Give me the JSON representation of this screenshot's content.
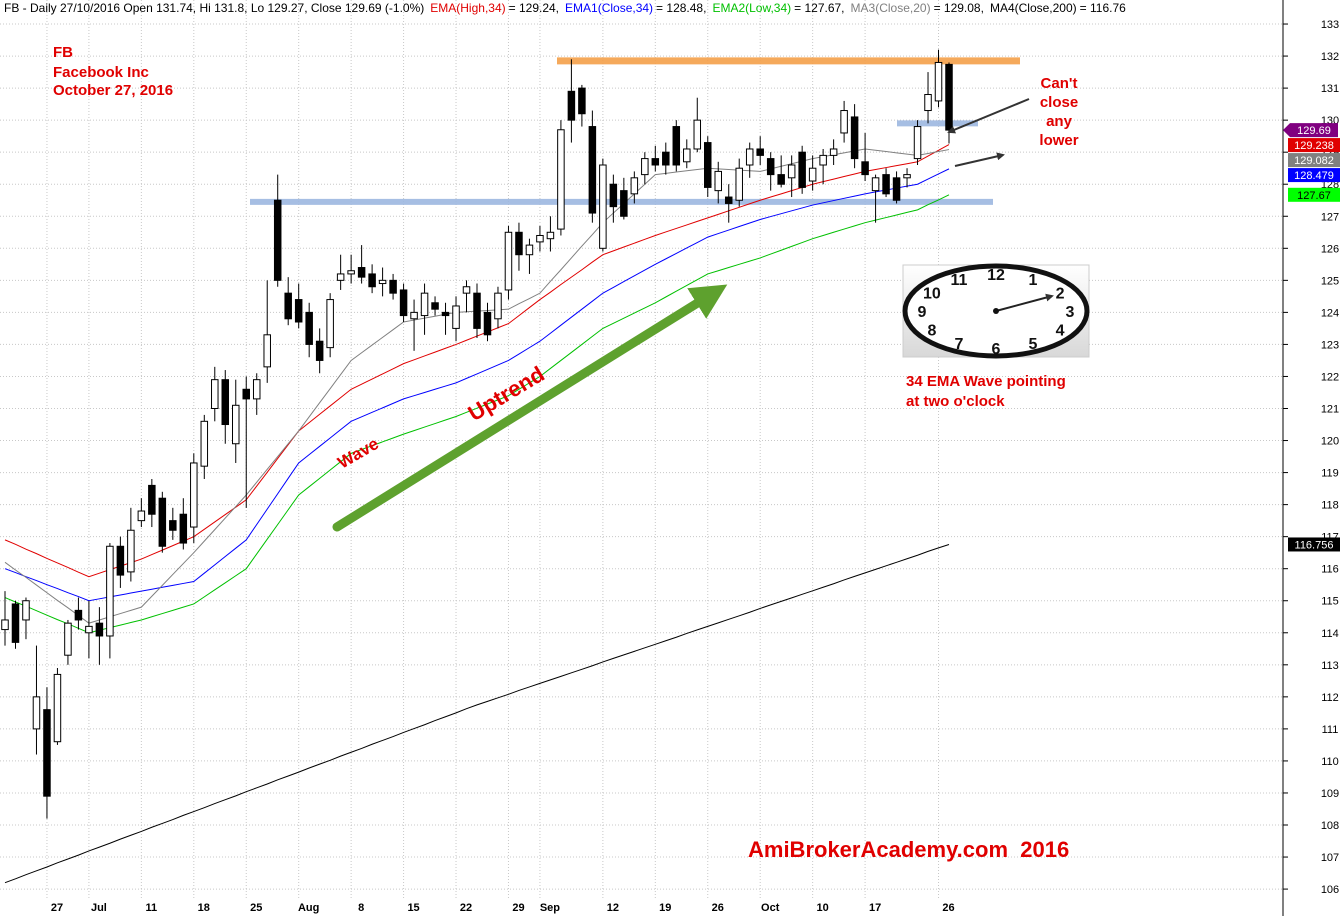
{
  "chart_data": {
    "type": "candlestick",
    "title": "FB - Daily 27/10/2016 Open 131.74, Hi 131.8, Lo 129.27, Close 129.69 (-1.0%)",
    "candle_color": "#800080",
    "ylim": [
      105.16,
      133.75
    ],
    "yticks": [
      106,
      107,
      108,
      109,
      110,
      111,
      112,
      113,
      114,
      115,
      116,
      117,
      118,
      119,
      120,
      121,
      122,
      123,
      124,
      125,
      126,
      127,
      128,
      129,
      130,
      131,
      132,
      133
    ],
    "grid": true,
    "categories": [
      null,
      null,
      null,
      null,
      "27",
      null,
      null,
      null,
      "Jul",
      null,
      null,
      null,
      null,
      "11",
      null,
      null,
      null,
      null,
      "18",
      null,
      null,
      null,
      null,
      "25",
      null,
      null,
      null,
      null,
      "Aug",
      null,
      null,
      null,
      null,
      "8",
      null,
      null,
      null,
      null,
      "15",
      null,
      null,
      null,
      null,
      "22",
      null,
      null,
      null,
      null,
      "29",
      null,
      null,
      "Sep",
      null,
      null,
      null,
      null,
      null,
      "12",
      null,
      null,
      null,
      null,
      "19",
      null,
      null,
      null,
      null,
      "26",
      null,
      null,
      null,
      null,
      "Oct",
      null,
      null,
      null,
      null,
      "10",
      null,
      null,
      null,
      null,
      "17",
      null,
      null,
      null,
      null,
      null,
      null,
      "26",
      null
    ],
    "ohlc": [
      [
        114.1,
        115.3,
        113.6,
        114.4
      ],
      [
        114.9,
        115.0,
        113.5,
        113.7
      ],
      [
        114.4,
        115.1,
        113.8,
        115.0
      ],
      [
        111.0,
        113.6,
        110.2,
        112.0
      ],
      [
        111.6,
        112.3,
        108.2,
        108.9
      ],
      [
        110.6,
        112.9,
        110.5,
        112.7
      ],
      [
        113.3,
        114.4,
        113.0,
        114.3
      ],
      [
        114.7,
        115.1,
        114.1,
        114.4
      ],
      [
        114.0,
        115.0,
        113.2,
        114.2
      ],
      [
        114.3,
        114.8,
        113.0,
        113.9
      ],
      [
        113.9,
        116.8,
        113.2,
        116.7
      ],
      [
        116.7,
        117.0,
        115.4,
        115.8
      ],
      [
        115.9,
        117.9,
        115.6,
        117.2
      ],
      [
        117.5,
        118.2,
        117.3,
        117.8
      ],
      [
        118.6,
        118.8,
        117.3,
        117.7
      ],
      [
        118.2,
        118.4,
        116.5,
        116.7
      ],
      [
        117.5,
        117.9,
        116.9,
        117.2
      ],
      [
        117.7,
        118.2,
        116.6,
        116.8
      ],
      [
        117.3,
        119.6,
        116.8,
        119.3
      ],
      [
        119.2,
        120.8,
        118.8,
        120.6
      ],
      [
        121.0,
        122.3,
        120.6,
        121.9
      ],
      [
        121.9,
        122.2,
        119.9,
        120.5
      ],
      [
        119.9,
        121.9,
        119.3,
        121.1
      ],
      [
        121.6,
        122.0,
        117.9,
        121.3
      ],
      [
        121.3,
        122.1,
        120.8,
        121.9
      ],
      [
        122.3,
        125.0,
        121.8,
        123.3
      ],
      [
        127.5,
        128.3,
        124.8,
        125.0
      ],
      [
        124.6,
        125.1,
        123.6,
        123.8
      ],
      [
        124.4,
        124.9,
        123.5,
        123.7
      ],
      [
        124.0,
        124.3,
        122.6,
        123.0
      ],
      [
        123.1,
        123.5,
        122.1,
        122.5
      ],
      [
        122.9,
        124.6,
        122.6,
        124.4
      ],
      [
        125.0,
        125.8,
        124.7,
        125.2
      ],
      [
        125.2,
        125.8,
        124.9,
        125.3
      ],
      [
        125.4,
        126.1,
        124.9,
        125.1
      ],
      [
        125.2,
        125.5,
        124.6,
        124.8
      ],
      [
        124.9,
        125.4,
        124.5,
        125.0
      ],
      [
        125.0,
        125.2,
        124.4,
        124.6
      ],
      [
        124.7,
        124.9,
        123.7,
        123.9
      ],
      [
        123.8,
        124.4,
        122.8,
        124.0
      ],
      [
        123.9,
        124.9,
        123.3,
        124.6
      ],
      [
        124.3,
        124.5,
        123.9,
        124.1
      ],
      [
        124.0,
        124.3,
        123.3,
        123.9
      ],
      [
        123.5,
        124.5,
        123.1,
        124.2
      ],
      [
        124.6,
        125.0,
        124.0,
        124.8
      ],
      [
        124.6,
        124.9,
        123.2,
        123.5
      ],
      [
        124.0,
        124.3,
        123.1,
        123.3
      ],
      [
        123.8,
        124.8,
        123.5,
        124.6
      ],
      [
        124.7,
        126.7,
        124.4,
        126.5
      ],
      [
        126.5,
        126.8,
        125.3,
        125.8
      ],
      [
        125.8,
        126.3,
        125.2,
        126.1
      ],
      [
        126.2,
        126.7,
        125.9,
        126.4
      ],
      [
        126.3,
        127.0,
        125.9,
        126.5
      ],
      [
        126.6,
        130.0,
        126.4,
        129.7
      ],
      [
        130.9,
        131.9,
        129.3,
        130.0
      ],
      [
        131.0,
        131.1,
        129.8,
        130.2
      ],
      [
        129.8,
        130.3,
        126.8,
        127.1
      ],
      [
        126.0,
        128.8,
        125.9,
        128.6
      ],
      [
        128.0,
        128.3,
        126.8,
        127.3
      ],
      [
        127.8,
        128.2,
        126.9,
        127.0
      ],
      [
        127.7,
        128.4,
        127.4,
        128.2
      ],
      [
        128.3,
        129.0,
        128.0,
        128.8
      ],
      [
        128.8,
        129.2,
        128.4,
        128.6
      ],
      [
        129.0,
        129.3,
        128.3,
        128.6
      ],
      [
        129.8,
        130.0,
        128.4,
        128.6
      ],
      [
        128.7,
        129.4,
        128.5,
        129.1
      ],
      [
        129.1,
        130.7,
        129.0,
        130.0
      ],
      [
        129.3,
        129.5,
        127.6,
        127.9
      ],
      [
        127.8,
        128.7,
        127.4,
        128.4
      ],
      [
        127.6,
        128.0,
        126.8,
        127.4
      ],
      [
        127.5,
        128.8,
        127.3,
        128.5
      ],
      [
        128.6,
        129.3,
        128.2,
        129.1
      ],
      [
        129.1,
        129.5,
        128.6,
        128.9
      ],
      [
        128.8,
        129.0,
        127.8,
        128.3
      ],
      [
        128.3,
        128.9,
        127.9,
        128.0
      ],
      [
        128.2,
        128.9,
        127.6,
        128.6
      ],
      [
        129.0,
        129.2,
        127.7,
        127.9
      ],
      [
        128.1,
        128.9,
        127.8,
        128.5
      ],
      [
        128.6,
        129.1,
        128.0,
        128.9
      ],
      [
        128.9,
        129.4,
        128.6,
        129.1
      ],
      [
        129.6,
        130.6,
        129.3,
        130.3
      ],
      [
        130.1,
        130.5,
        128.5,
        128.8
      ],
      [
        128.7,
        129.6,
        128.1,
        128.3
      ],
      [
        127.8,
        128.3,
        126.8,
        128.2
      ],
      [
        128.3,
        128.5,
        127.6,
        127.7
      ],
      [
        128.2,
        128.4,
        127.4,
        127.5
      ],
      [
        128.2,
        128.5,
        127.9,
        128.3
      ],
      [
        128.8,
        130.0,
        128.6,
        129.8
      ],
      [
        130.3,
        131.5,
        129.9,
        130.8
      ],
      [
        130.6,
        132.2,
        130.4,
        131.8
      ],
      [
        131.74,
        131.8,
        129.27,
        129.69
      ]
    ],
    "series": [
      {
        "name": "EMA(High,34)",
        "header_value": "= 129.24,",
        "color": "#e00000",
        "values": [
          116.9,
          116.76,
          116.61,
          116.47,
          116.32,
          116.18,
          116.04,
          115.89,
          115.75,
          115.86,
          115.97,
          116.08,
          116.19,
          116.3,
          116.44,
          116.58,
          116.72,
          116.86,
          117.0,
          117.23,
          117.46,
          117.69,
          117.92,
          118.15,
          118.58,
          119.01,
          119.44,
          119.87,
          120.3,
          120.56,
          120.82,
          121.08,
          121.34,
          121.6,
          121.76,
          121.92,
          122.08,
          122.24,
          122.4,
          122.52,
          122.64,
          122.76,
          122.88,
          123.0,
          123.13,
          123.26,
          123.39,
          123.52,
          123.65,
          123.9,
          124.15,
          124.4,
          124.63,
          124.87,
          125.1,
          125.33,
          125.57,
          125.8,
          125.92,
          126.04,
          126.16,
          126.28,
          126.4,
          126.51,
          126.62,
          126.73,
          126.84,
          126.95,
          127.06,
          127.17,
          127.28,
          127.39,
          127.5,
          127.6,
          127.7,
          127.8,
          127.9,
          128.0,
          128.08,
          128.16,
          128.24,
          128.32,
          128.4,
          128.46,
          128.52,
          128.58,
          128.64,
          128.7,
          128.88,
          129.06,
          129.238
        ]
      },
      {
        "name": "EMA1(Close,34)",
        "header_value": "= 128.48,",
        "color": "#0000ff",
        "values": [
          116.0,
          115.88,
          115.75,
          115.63,
          115.5,
          115.38,
          115.25,
          115.13,
          115.0,
          115.06,
          115.12,
          115.18,
          115.24,
          115.3,
          115.36,
          115.42,
          115.48,
          115.54,
          115.6,
          115.86,
          116.12,
          116.38,
          116.64,
          116.9,
          117.38,
          117.86,
          118.34,
          118.82,
          119.3,
          119.56,
          119.82,
          120.08,
          120.34,
          120.6,
          120.74,
          120.88,
          121.02,
          121.16,
          121.3,
          121.4,
          121.5,
          121.6,
          121.7,
          121.8,
          121.94,
          122.08,
          122.22,
          122.36,
          122.5,
          122.7,
          122.9,
          123.1,
          123.35,
          123.6,
          123.85,
          124.1,
          124.35,
          124.6,
          124.78,
          124.96,
          125.14,
          125.32,
          125.5,
          125.67,
          125.84,
          126.01,
          126.18,
          126.35,
          126.46,
          126.57,
          126.68,
          126.79,
          126.9,
          126.99,
          127.08,
          127.17,
          127.26,
          127.35,
          127.42,
          127.49,
          127.56,
          127.63,
          127.7,
          127.76,
          127.82,
          127.88,
          127.94,
          128.0,
          128.16,
          128.32,
          128.479
        ]
      },
      {
        "name": "EMA2(Low,34)",
        "header_value": "= 127.67,",
        "color": "#00c000",
        "values": [
          115.1,
          114.96,
          114.83,
          114.69,
          114.55,
          114.41,
          114.28,
          114.14,
          114.0,
          114.08,
          114.16,
          114.24,
          114.32,
          114.4,
          114.5,
          114.6,
          114.7,
          114.8,
          114.9,
          115.12,
          115.34,
          115.56,
          115.78,
          116.0,
          116.46,
          116.92,
          117.38,
          117.84,
          118.3,
          118.56,
          118.82,
          119.08,
          119.34,
          119.6,
          119.72,
          119.84,
          119.96,
          120.08,
          120.2,
          120.31,
          120.42,
          120.53,
          120.64,
          120.75,
          120.88,
          121.01,
          121.14,
          121.27,
          121.4,
          121.6,
          121.8,
          122.0,
          122.25,
          122.5,
          122.75,
          123.0,
          123.25,
          123.5,
          123.66,
          123.82,
          123.98,
          124.14,
          124.3,
          124.48,
          124.66,
          124.84,
          125.02,
          125.2,
          125.3,
          125.4,
          125.5,
          125.6,
          125.7,
          125.82,
          125.94,
          126.06,
          126.18,
          126.3,
          126.4,
          126.5,
          126.6,
          126.7,
          126.8,
          126.88,
          126.96,
          127.04,
          127.12,
          127.2,
          127.36,
          127.51,
          127.67
        ]
      },
      {
        "name": "MA3(Close,20)",
        "header_value": "= 129.08,",
        "color": "#808080",
        "values": [
          116.2,
          115.96,
          115.73,
          115.49,
          115.25,
          115.01,
          114.78,
          114.54,
          114.3,
          114.4,
          114.5,
          114.6,
          114.7,
          114.8,
          115.14,
          115.48,
          115.82,
          116.16,
          116.5,
          116.86,
          117.22,
          117.58,
          117.94,
          118.3,
          118.7,
          119.1,
          119.5,
          119.9,
          120.3,
          120.74,
          121.18,
          121.62,
          122.06,
          122.5,
          122.74,
          122.98,
          123.22,
          123.46,
          123.7,
          123.76,
          123.82,
          123.88,
          123.94,
          124.0,
          124.02,
          124.04,
          124.06,
          124.08,
          124.1,
          124.27,
          124.43,
          124.6,
          124.97,
          125.33,
          125.7,
          126.07,
          126.43,
          126.8,
          127.1,
          127.4,
          127.7,
          128.0,
          128.3,
          128.34,
          128.38,
          128.42,
          128.46,
          128.5,
          128.48,
          128.46,
          128.44,
          128.42,
          128.4,
          128.48,
          128.56,
          128.64,
          128.72,
          128.8,
          128.86,
          128.92,
          128.98,
          129.04,
          129.1,
          129.06,
          129.02,
          128.98,
          128.94,
          128.9,
          128.96,
          129.02,
          129.082
        ]
      },
      {
        "name": "MA4(Close,200)",
        "header_value": "= 116.76",
        "color": "#000000",
        "values": [
          106.2,
          106.32,
          106.45,
          106.57,
          106.69,
          106.82,
          106.94,
          107.06,
          107.19,
          107.31,
          107.43,
          107.56,
          107.68,
          107.8,
          107.93,
          108.05,
          108.17,
          108.3,
          108.42,
          108.54,
          108.67,
          108.79,
          108.91,
          109.04,
          109.16,
          109.28,
          109.41,
          109.53,
          109.65,
          109.78,
          109.9,
          110.02,
          110.15,
          110.27,
          110.39,
          110.52,
          110.64,
          110.76,
          110.89,
          111.01,
          111.13,
          111.26,
          111.38,
          111.5,
          111.63,
          111.75,
          111.86,
          111.97,
          112.08,
          112.2,
          112.31,
          112.42,
          112.53,
          112.64,
          112.75,
          112.86,
          112.97,
          113.09,
          113.2,
          113.31,
          113.42,
          113.53,
          113.64,
          113.75,
          113.86,
          113.98,
          114.09,
          114.2,
          114.31,
          114.42,
          114.53,
          114.64,
          114.76,
          114.87,
          114.98,
          115.09,
          115.2,
          115.31,
          115.42,
          115.53,
          115.65,
          115.76,
          115.87,
          115.98,
          116.09,
          116.2,
          116.31,
          116.42,
          116.54,
          116.65,
          116.756
        ]
      }
    ],
    "levels": [
      {
        "value": 131.85,
        "color": "#f5a04a"
      },
      {
        "value": 127.45,
        "color": "#9db8e0"
      },
      {
        "value": 129.9,
        "color": "#9db8e0"
      }
    ],
    "annotations": {
      "symbol": "FB",
      "company": "Facebook Inc",
      "date": "October 27, 2016",
      "cant_close": [
        "Can't",
        "close",
        "any",
        "lower"
      ],
      "wave": "Wave",
      "uptrend": "Uptrend",
      "clock_note": [
        "34 EMA Wave pointing",
        "at two o'clock"
      ],
      "clock_numbers": [
        "12",
        "1",
        "2",
        "3",
        "4",
        "5",
        "6",
        "7",
        "8",
        "9",
        "10",
        "11"
      ],
      "watermark": "AmiBrokerAcademy.com  2016"
    }
  }
}
